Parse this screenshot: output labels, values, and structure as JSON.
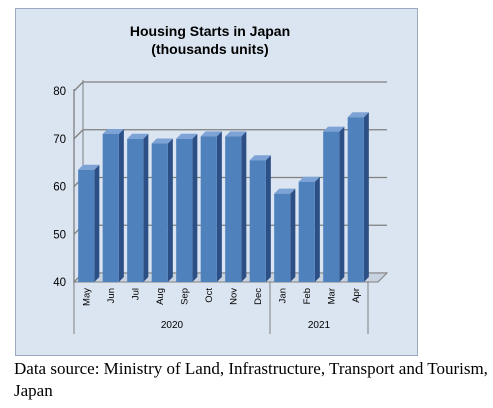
{
  "chart_data": {
    "type": "bar",
    "title": "Housing Starts in Japan",
    "subtitle": "(thousands units)",
    "categories": [
      "May",
      "Jun",
      "Jul",
      "Aug",
      "Sep",
      "Oct",
      "Nov",
      "Dec",
      "Jan",
      "Feb",
      "Mar",
      "Apr"
    ],
    "groups": [
      {
        "label": "2020",
        "count": 8
      },
      {
        "label": "2021",
        "count": 4
      }
    ],
    "values": [
      63.5,
      71,
      70,
      69,
      70,
      70.5,
      70.5,
      65.5,
      58.5,
      61,
      71.5,
      74.5
    ],
    "ylim": [
      40,
      80
    ],
    "yticks": [
      40,
      50,
      60,
      70,
      80
    ],
    "grid": true,
    "colors": {
      "bar": "#4f81bd",
      "bar_side": "#2c4f86",
      "bar_top": "#7da3d6",
      "grid": "#7f7f7f",
      "background": "#dbe5f1"
    }
  },
  "footer": {
    "source": "Data source: Ministry of Land, Infrastructure, Transport and Tourism, Japan"
  }
}
